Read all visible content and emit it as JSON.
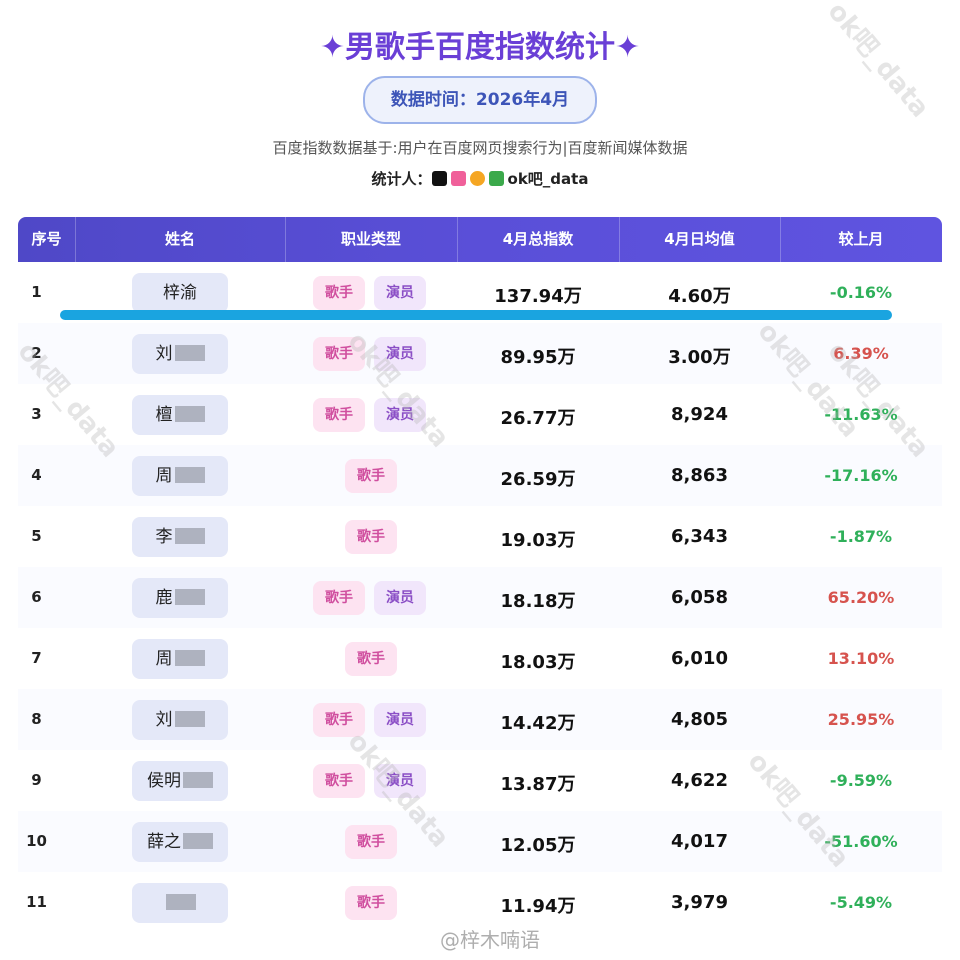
{
  "header": {
    "title": "✦男歌手百度指数统计✦",
    "badge": "数据时间：2026年4月",
    "subtitle": "百度指数数据基于:用户在百度网页搜索行为|百度新闻媒体数据",
    "stat_label": "统计人：",
    "stat_name": "ok吧_data"
  },
  "table": {
    "columns": [
      "序号",
      "姓名",
      "职业类型",
      "4月总指数",
      "4月日均值",
      "较上月"
    ],
    "rows": [
      {
        "rank": "1",
        "name": "梓渝",
        "roles": [
          "歌手",
          "演员"
        ],
        "total": "137.94万",
        "daily": "4.60万",
        "change": "-0.16%"
      },
      {
        "rank": "2",
        "name": "刘",
        "roles": [
          "歌手",
          "演员"
        ],
        "total": "89.95万",
        "daily": "3.00万",
        "change": "6.39%"
      },
      {
        "rank": "3",
        "name": "檀",
        "roles": [
          "歌手",
          "演员"
        ],
        "total": "26.77万",
        "daily": "8,924",
        "change": "-11.63%"
      },
      {
        "rank": "4",
        "name": "周",
        "roles": [
          "歌手"
        ],
        "total": "26.59万",
        "daily": "8,863",
        "change": "-17.16%"
      },
      {
        "rank": "5",
        "name": "李",
        "roles": [
          "歌手"
        ],
        "total": "19.03万",
        "daily": "6,343",
        "change": "-1.87%"
      },
      {
        "rank": "6",
        "name": "鹿",
        "roles": [
          "歌手",
          "演员"
        ],
        "total": "18.18万",
        "daily": "6,058",
        "change": "65.20%"
      },
      {
        "rank": "7",
        "name": "周",
        "roles": [
          "歌手"
        ],
        "total": "18.03万",
        "daily": "6,010",
        "change": "13.10%"
      },
      {
        "rank": "8",
        "name": "刘",
        "roles": [
          "歌手",
          "演员"
        ],
        "total": "14.42万",
        "daily": "4,805",
        "change": "25.95%"
      },
      {
        "rank": "9",
        "name": "侯明",
        "roles": [
          "歌手",
          "演员"
        ],
        "total": "13.87万",
        "daily": "4,622",
        "change": "-9.59%"
      },
      {
        "rank": "10",
        "name": "薛之",
        "roles": [
          "歌手"
        ],
        "total": "12.05万",
        "daily": "4,017",
        "change": "-51.60%"
      },
      {
        "rank": "11",
        "name": "",
        "roles": [
          "歌手"
        ],
        "total": "11.94万",
        "daily": "3,979",
        "change": "-5.49%"
      }
    ]
  },
  "watermarks": {
    "mark": "ok吧_data",
    "credit": "@梓木喃语"
  }
}
